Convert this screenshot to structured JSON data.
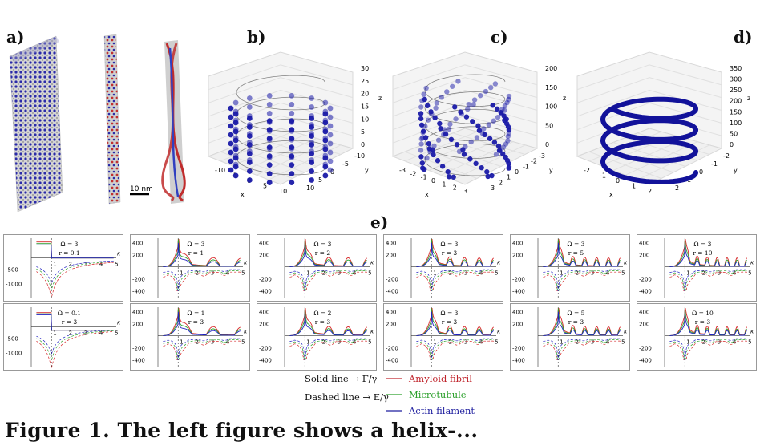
{
  "panel_labels": {
    "a": "a)",
    "b": "b)",
    "c": "c)",
    "d": "d)",
    "e": "e)"
  },
  "scale_bar": "10 nm",
  "plots3d": {
    "b": {
      "zticks": [
        "30",
        "25",
        "20",
        "15",
        "10",
        "5",
        "0"
      ],
      "xticks": [
        "-10",
        "-5",
        "0",
        "5",
        "10"
      ],
      "yticks": [
        "10",
        "5",
        "0",
        "-5",
        "-10"
      ],
      "xlabel": "x",
      "ylabel": "y",
      "zlabel": "z"
    },
    "c": {
      "zticks": [
        "200",
        "150",
        "100",
        "50",
        "0"
      ],
      "xticks": [
        "-3",
        "-2",
        "-1",
        "0",
        "1",
        "2",
        "3"
      ],
      "yticks": [
        "3",
        "2",
        "1",
        "0",
        "-1",
        "-2",
        "-3"
      ],
      "xlabel": "x",
      "ylabel": "y",
      "zlabel": "z"
    },
    "d": {
      "zticks": [
        "350",
        "300",
        "250",
        "200",
        "150",
        "100",
        "50",
        "0"
      ],
      "xticks": [
        "-2",
        "-1",
        "0",
        "1",
        "2"
      ],
      "yticks": [
        "2",
        "1",
        "0",
        "-1",
        "-2"
      ],
      "xlabel": "x",
      "ylabel": "y",
      "zlabel": "z"
    }
  },
  "subplots": [
    {
      "omega": "Ω = 3",
      "r": "r = 0.1",
      "yticks": [
        "-500",
        "-1000"
      ],
      "xticks": [
        "1",
        "2",
        "3",
        "4",
        "5"
      ]
    },
    {
      "omega": "Ω = 3",
      "r": "r = 1",
      "yticks": [
        "400",
        "200",
        "-200",
        "-400"
      ],
      "xticks": [
        "1",
        "2",
        "3",
        "4",
        "5"
      ]
    },
    {
      "omega": "Ω = 3",
      "r": "r = 2",
      "yticks": [
        "400",
        "200",
        "-200",
        "-400"
      ],
      "xticks": [
        "1",
        "2",
        "3",
        "4",
        "5"
      ]
    },
    {
      "omega": "Ω = 3",
      "r": "r = 3",
      "yticks": [
        "400",
        "200",
        "-200",
        "-400"
      ],
      "xticks": [
        "1",
        "2",
        "3",
        "4",
        "5"
      ]
    },
    {
      "omega": "Ω = 3",
      "r": "r = 5",
      "yticks": [
        "400",
        "200",
        "-200",
        "-400"
      ],
      "xticks": [
        "1",
        "2",
        "3",
        "4",
        "5"
      ]
    },
    {
      "omega": "Ω = 3",
      "r": "r = 10",
      "yticks": [
        "400",
        "200",
        "-200",
        "-400"
      ],
      "xticks": [
        "1",
        "2",
        "3",
        "4",
        "5"
      ]
    },
    {
      "omega": "Ω = 0.1",
      "r": "r = 3",
      "yticks": [
        "-500",
        "-1000"
      ],
      "xticks": [
        "1",
        "2",
        "3",
        "4",
        "5"
      ]
    },
    {
      "omega": "Ω = 1",
      "r": "r = 3",
      "yticks": [
        "400",
        "200",
        "-200",
        "-400"
      ],
      "xticks": [
        "1",
        "2",
        "3",
        "4",
        "5"
      ]
    },
    {
      "omega": "Ω = 2",
      "r": "r = 3",
      "yticks": [
        "400",
        "200",
        "-200",
        "-400"
      ],
      "xticks": [
        "1",
        "2",
        "3",
        "4",
        "5"
      ]
    },
    {
      "omega": "Ω = 3",
      "r": "r = 3",
      "yticks": [
        "400",
        "200",
        "-200",
        "-400"
      ],
      "xticks": [
        "1",
        "2",
        "3",
        "4",
        "5"
      ]
    },
    {
      "omega": "Ω = 5",
      "r": "r = 3",
      "yticks": [
        "400",
        "200",
        "-200",
        "-400"
      ],
      "xticks": [
        "1",
        "2",
        "3",
        "4",
        "5"
      ]
    },
    {
      "omega": "Ω = 10",
      "r": "r = 3",
      "yticks": [
        "400",
        "200",
        "-200",
        "-400"
      ],
      "xticks": [
        "1",
        "2",
        "3",
        "4",
        "5"
      ]
    }
  ],
  "axis_symbol": "κ",
  "legend": {
    "solid": "Solid line → Γ/γ",
    "dashed": "Dashed line → E/γ",
    "items": [
      {
        "label": "Amyloid fibril",
        "color": "#c0262d"
      },
      {
        "label": "Microtubule",
        "color": "#2ca02c"
      },
      {
        "label": "Actin filament",
        "color": "#1f1f9f"
      }
    ]
  },
  "caption": "Figure 1. The left figure shows a helix-...",
  "colors": {
    "red": "#d62728",
    "green": "#2ca02c",
    "blue": "#2020c0",
    "sphere": "#1a1aa8"
  }
}
